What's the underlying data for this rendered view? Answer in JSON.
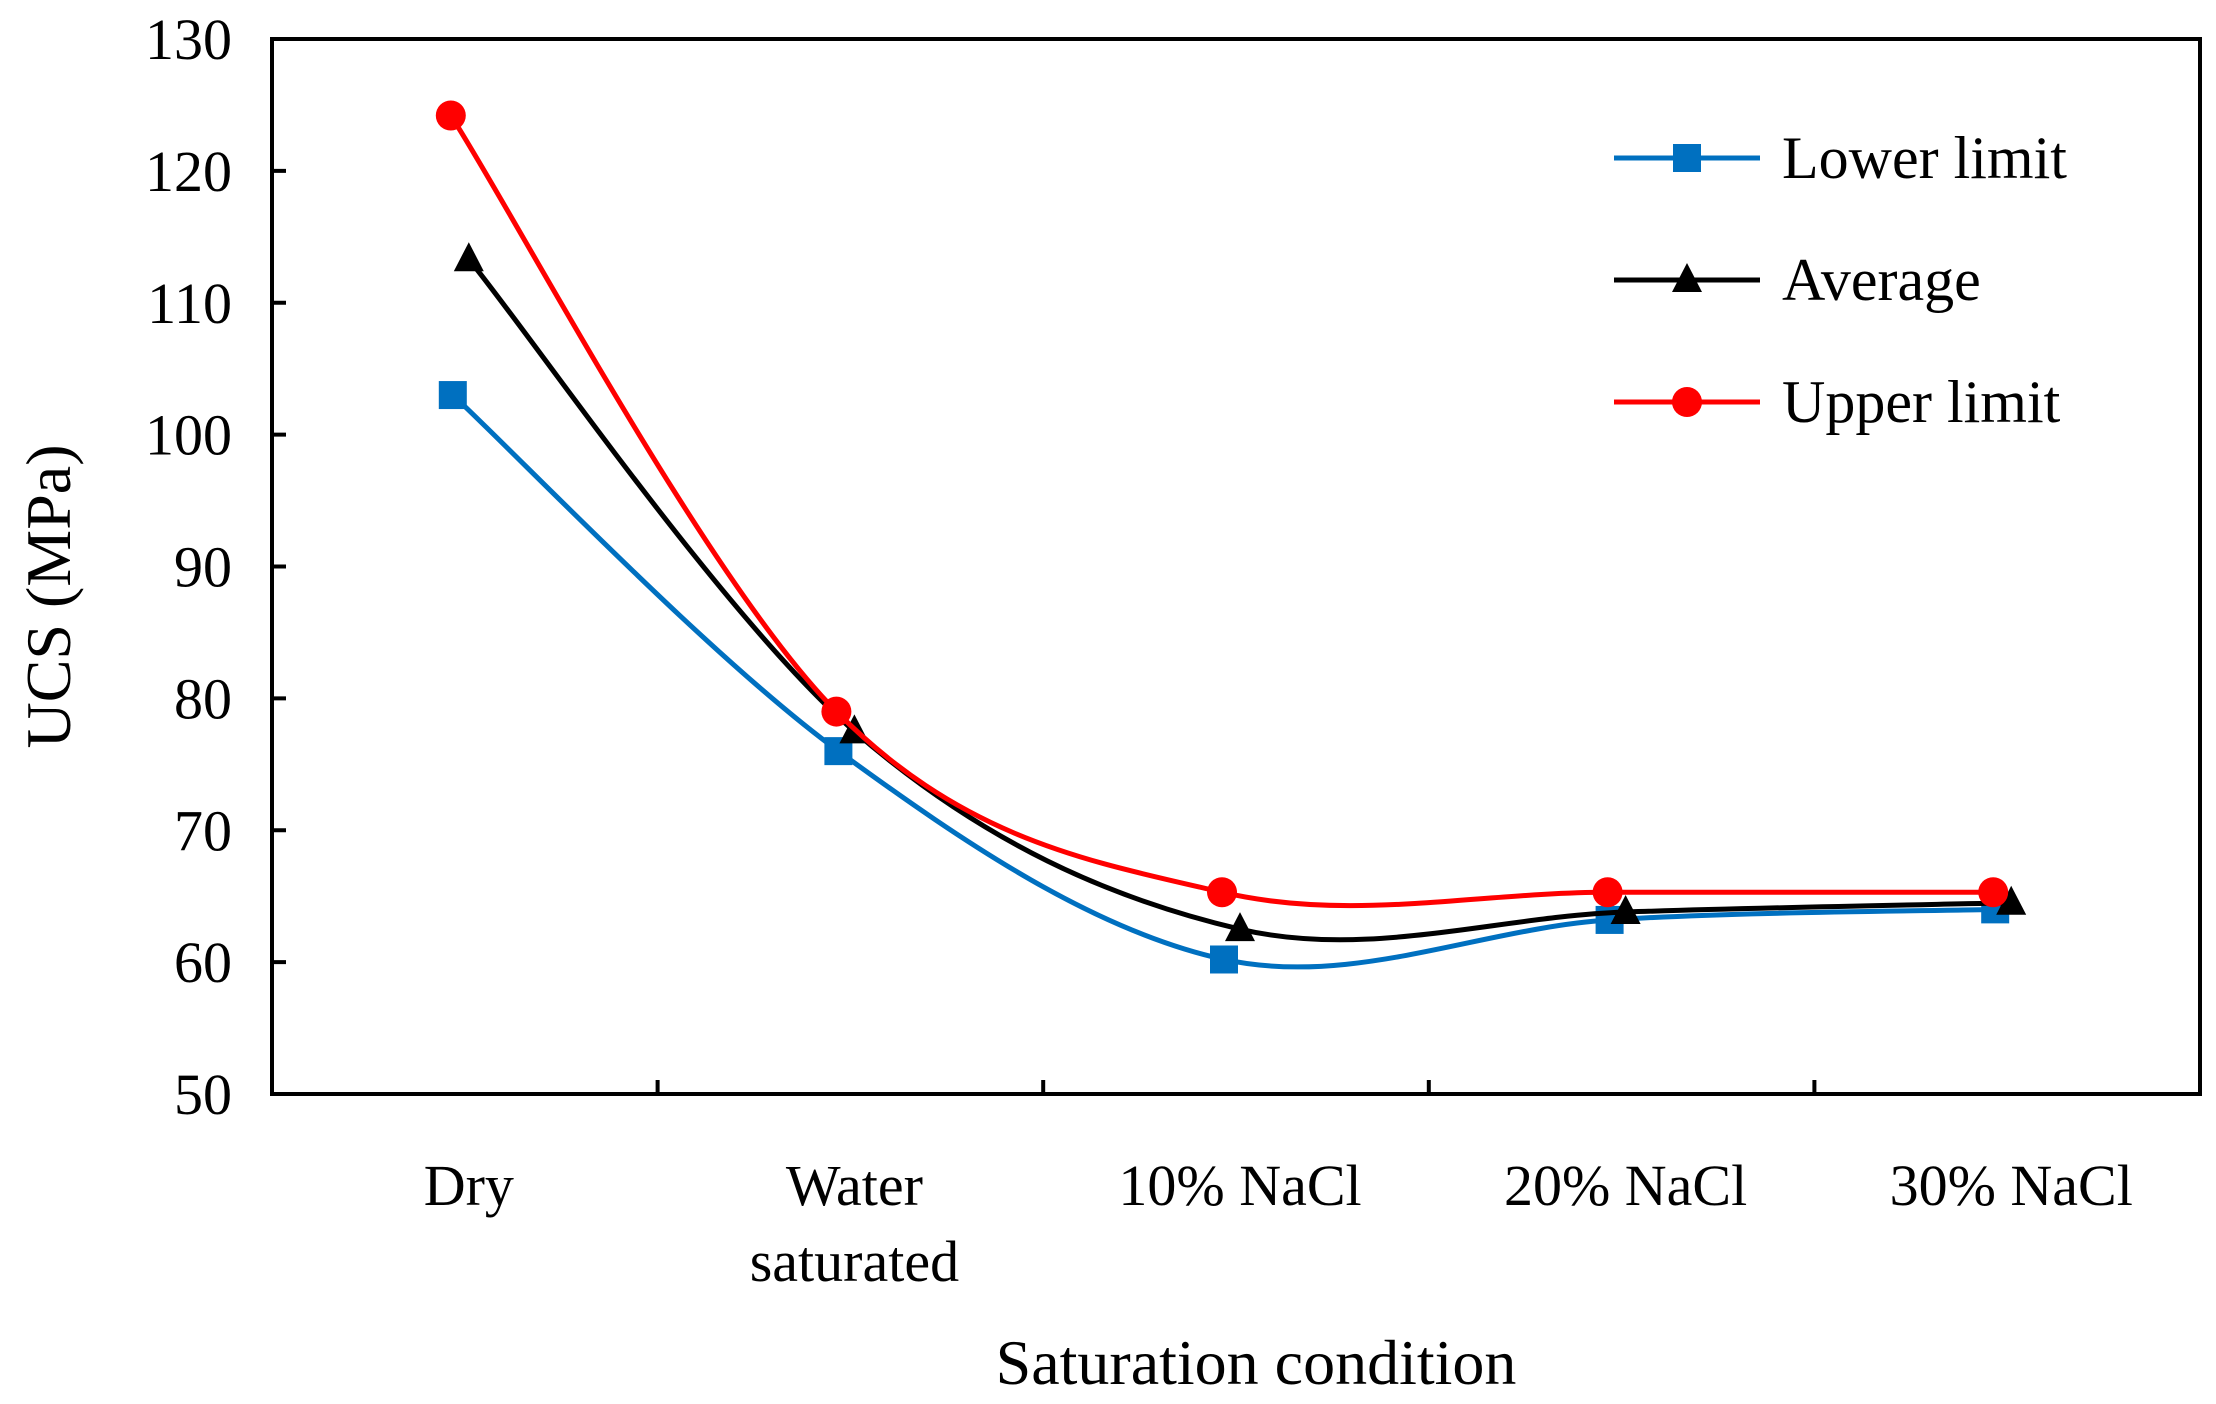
{
  "chart_data": {
    "type": "line",
    "title": "",
    "xlabel": "Saturation condition",
    "ylabel": "UCS (MPa)",
    "ylim": [
      50,
      130
    ],
    "yticks": [
      50,
      60,
      70,
      80,
      90,
      100,
      110,
      120,
      130
    ],
    "grid": false,
    "legend_position": "top-right",
    "categories": [
      [
        "Dry"
      ],
      [
        "Water",
        "saturated"
      ],
      [
        "10% NaCl"
      ],
      [
        "20% NaCl"
      ],
      [
        "30% NaCl"
      ]
    ],
    "series": [
      {
        "name": "Lower limit",
        "color": "#0070C0",
        "marker": "square",
        "values": [
          103,
          76,
          60.2,
          63.2,
          64
        ]
      },
      {
        "name": "Average",
        "color": "#000000",
        "marker": "triangle",
        "values": [
          113.3,
          77.5,
          62.5,
          63.8,
          64.5
        ]
      },
      {
        "name": "Upper limit",
        "color": "#FF0000",
        "marker": "circle",
        "values": [
          124.2,
          79,
          65.3,
          65.3,
          65.3
        ]
      }
    ]
  }
}
